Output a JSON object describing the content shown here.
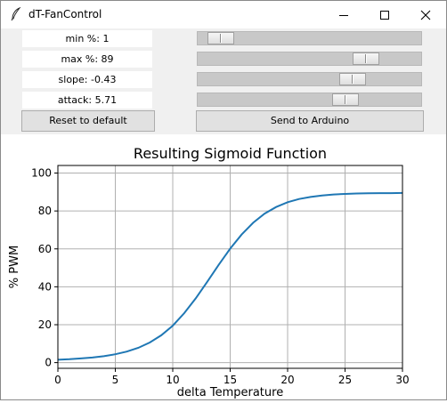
{
  "window": {
    "title": "dT-FanControl",
    "app_icon": "feather-icon"
  },
  "sliders": [
    {
      "label": "min %: 1",
      "value": 1,
      "min": 0,
      "max": 100
    },
    {
      "label": "max %: 89",
      "value": 89,
      "min": 0,
      "max": 100
    },
    {
      "label": "slope: -0.43",
      "value": -0.43
    },
    {
      "label": "attack: 5.71",
      "value": 5.71
    }
  ],
  "buttons": {
    "reset": "Reset to default",
    "send": "Send to Arduino"
  },
  "chart_data": {
    "type": "line",
    "title": "Resulting Sigmoid Function",
    "xlabel": "delta Temperature",
    "ylabel": "% PWM",
    "xlim": [
      0,
      30
    ],
    "ylim": [
      -3,
      104
    ],
    "xticks": [
      0,
      5,
      10,
      15,
      20,
      25,
      30
    ],
    "yticks": [
      0,
      20,
      40,
      60,
      80,
      100
    ],
    "grid": true,
    "line_color": "#1f77b4",
    "series": [
      {
        "x": [
          0,
          1,
          2,
          3,
          4,
          5,
          6,
          7,
          8,
          9,
          10,
          11,
          12,
          13,
          14,
          15,
          16,
          17,
          18,
          19,
          20,
          21,
          22,
          23,
          24,
          25,
          26,
          27,
          28,
          29,
          30
        ],
        "values": [
          1.5,
          1.8,
          2.2,
          2.7,
          3.4,
          4.4,
          5.8,
          7.8,
          10.6,
          14.4,
          19.5,
          26.1,
          33.9,
          42.6,
          51.6,
          60.1,
          67.6,
          73.8,
          78.6,
          82.1,
          84.6,
          86.3,
          87.4,
          88.2,
          88.7,
          89.0,
          89.2,
          89.3,
          89.4,
          89.4,
          89.5
        ]
      }
    ]
  }
}
